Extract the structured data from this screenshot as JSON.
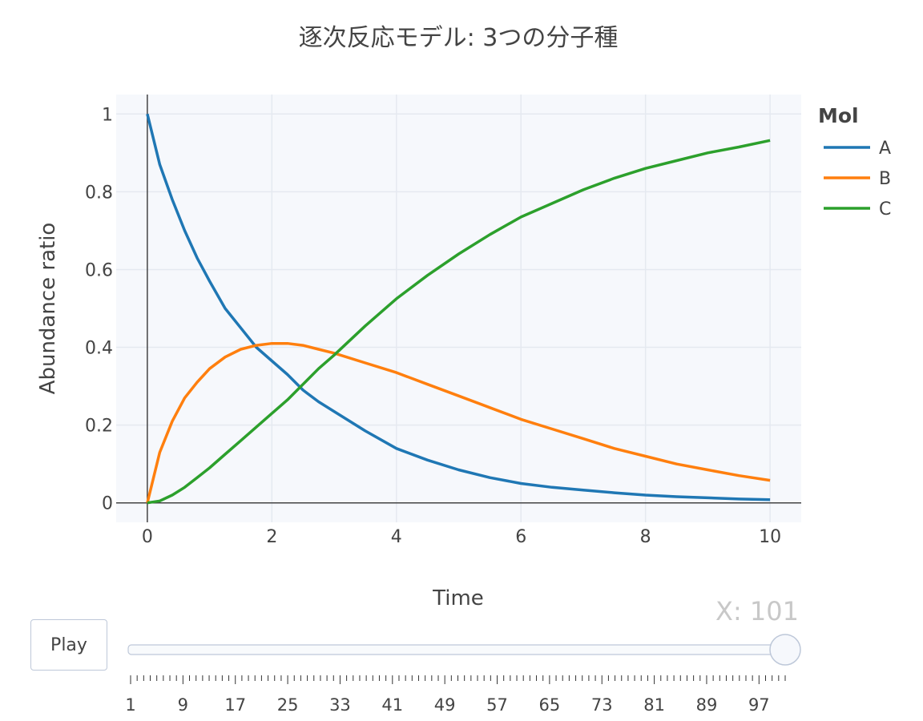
{
  "chart_data": {
    "type": "line",
    "title": "逐次反応モデル: 3つの分子種",
    "xlabel": "Time",
    "ylabel": "Abundance ratio",
    "xlim": [
      -0.5,
      10.5
    ],
    "ylim": [
      -0.05,
      1.05
    ],
    "x_ticks": [
      "0",
      "2",
      "4",
      "6",
      "8",
      "10"
    ],
    "y_ticks": [
      "0",
      "0.2",
      "0.4",
      "0.6",
      "0.8",
      "1"
    ],
    "legend": {
      "title": "Mol",
      "placement": "top-right"
    },
    "grid": true,
    "x": [
      0,
      0.2,
      0.4,
      0.6,
      0.8,
      1.0,
      1.25,
      1.5,
      1.75,
      2.0,
      2.25,
      2.5,
      2.75,
      3.0,
      3.5,
      4.0,
      4.5,
      5.0,
      5.5,
      6.0,
      6.5,
      7.0,
      7.5,
      8.0,
      8.5,
      9.0,
      9.5,
      10.0
    ],
    "series": [
      {
        "name": "A",
        "color": "#1f77b4",
        "values": [
          1.0,
          0.87,
          0.78,
          0.7,
          0.63,
          0.57,
          0.5,
          0.45,
          0.4,
          0.365,
          0.33,
          0.29,
          0.26,
          0.235,
          0.185,
          0.14,
          0.11,
          0.085,
          0.065,
          0.05,
          0.04,
          0.033,
          0.026,
          0.02,
          0.016,
          0.013,
          0.01,
          0.008
        ]
      },
      {
        "name": "B",
        "color": "#ff7f0e",
        "values": [
          0.0,
          0.13,
          0.21,
          0.27,
          0.31,
          0.345,
          0.375,
          0.395,
          0.405,
          0.41,
          0.41,
          0.405,
          0.395,
          0.385,
          0.36,
          0.335,
          0.305,
          0.275,
          0.245,
          0.215,
          0.19,
          0.165,
          0.14,
          0.12,
          0.1,
          0.085,
          0.07,
          0.058
        ]
      },
      {
        "name": "C",
        "color": "#2ca02c",
        "values": [
          0.0,
          0.005,
          0.02,
          0.04,
          0.065,
          0.09,
          0.125,
          0.16,
          0.195,
          0.23,
          0.265,
          0.305,
          0.345,
          0.38,
          0.455,
          0.525,
          0.585,
          0.64,
          0.69,
          0.735,
          0.77,
          0.805,
          0.835,
          0.86,
          0.88,
          0.9,
          0.915,
          0.932
        ]
      }
    ]
  },
  "slider": {
    "readout": "X: 101",
    "value": 101,
    "min": 1,
    "max": 101,
    "tick_labels": [
      "1",
      "9",
      "17",
      "25",
      "33",
      "41",
      "49",
      "57",
      "65",
      "73",
      "81",
      "89",
      "97"
    ]
  },
  "controls": {
    "play_label": "Play"
  }
}
